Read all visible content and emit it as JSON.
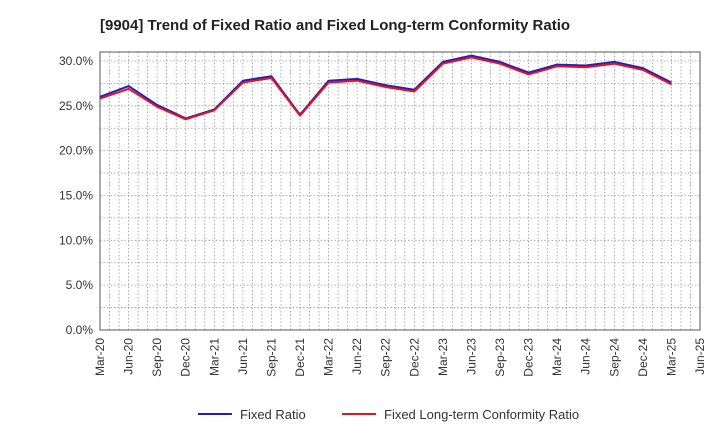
{
  "chart_data": {
    "type": "line",
    "title": "[9904]  Trend of Fixed Ratio and Fixed Long-term Conformity Ratio",
    "xlabel": "",
    "ylabel": "",
    "x": [
      "Mar-20",
      "Jun-20",
      "Sep-20",
      "Dec-20",
      "Mar-21",
      "Jun-21",
      "Sep-21",
      "Dec-21",
      "Mar-22",
      "Jun-22",
      "Sep-22",
      "Dec-22",
      "Mar-23",
      "Jun-23",
      "Sep-23",
      "Dec-23",
      "Mar-24",
      "Jun-24",
      "Sep-24",
      "Dec-24",
      "Mar-25"
    ],
    "x_tick_labels": [
      "Mar-20",
      "Jun-20",
      "Sep-20",
      "Dec-20",
      "Mar-21",
      "Jun-21",
      "Sep-21",
      "Dec-21",
      "Mar-22",
      "Jun-22",
      "Sep-22",
      "Dec-22",
      "Mar-23",
      "Jun-23",
      "Sep-23",
      "Dec-23",
      "Mar-24",
      "Jun-24",
      "Sep-24",
      "Dec-24",
      "Mar-25",
      "Jun-25"
    ],
    "y_tick_labels": [
      "0.0%",
      "5.0%",
      "10.0%",
      "15.0%",
      "20.0%",
      "25.0%",
      "30.0%"
    ],
    "y_ticks": [
      0,
      5,
      10,
      15,
      20,
      25,
      30
    ],
    "ylim": [
      0,
      31
    ],
    "grid": true,
    "legend_position": "bottom",
    "series": [
      {
        "name": "Fixed Ratio",
        "color": "#1f1fbf",
        "values": [
          26.0,
          27.2,
          25.1,
          23.6,
          24.6,
          27.8,
          28.3,
          24.0,
          27.8,
          28.0,
          27.3,
          26.8,
          29.9,
          30.6,
          29.9,
          28.7,
          29.6,
          29.5,
          29.9,
          29.2,
          27.6
        ]
      },
      {
        "name": "Fixed Long-term Conformity Ratio",
        "color": "#e8121d",
        "values": [
          25.8,
          26.9,
          24.9,
          23.5,
          24.5,
          27.6,
          28.1,
          23.9,
          27.6,
          27.8,
          27.1,
          26.6,
          29.7,
          30.4,
          29.7,
          28.5,
          29.4,
          29.3,
          29.7,
          29.0,
          27.4
        ]
      }
    ]
  }
}
